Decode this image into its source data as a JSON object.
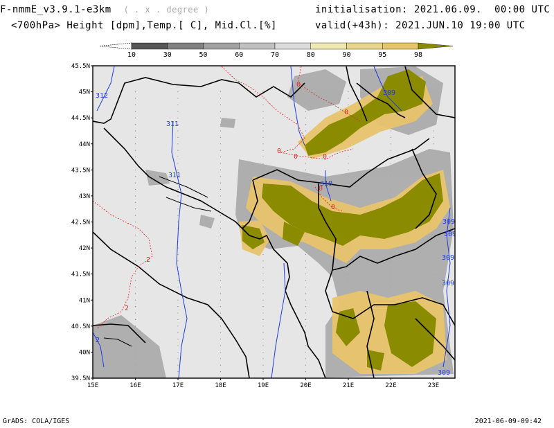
{
  "header": {
    "model": "F-nmmE_v3.9.1-e3km",
    "projection": "( . x . degree )",
    "fields": "<700hPa> Height [dpm],Temp.[ C], Mid.Cl.[%]",
    "init_label": "initialisation:",
    "init_value": "2021.06.09.  00:00 UTC",
    "valid_label": "valid(+43h):",
    "valid_value": "2021.JUN.10 19:00 UTC"
  },
  "colorbar": {
    "ticks": [
      "10",
      "30",
      "50",
      "60",
      "70",
      "80",
      "90",
      "95",
      "98"
    ],
    "colors": [
      "#555555",
      "#808080",
      "#a0a0a0",
      "#c0c0c0",
      "#dcdcdc",
      "#efe9b0",
      "#e9d48e",
      "#e8c46c",
      "#e5b13a",
      "#8b8b00"
    ]
  },
  "map": {
    "lat_labels": [
      "45.5N",
      "45N",
      "44.5N",
      "44N",
      "43.5N",
      "43N",
      "42.5N",
      "42N",
      "41.5N",
      "41N",
      "40.5N",
      "40N",
      "39.5N"
    ],
    "lon_labels": [
      "15E",
      "16E",
      "17E",
      "18E",
      "19E",
      "20E",
      "21E",
      "22E",
      "23E"
    ],
    "height_labels": [
      "312",
      "311",
      "311",
      "310",
      "309",
      "309",
      "309",
      "309",
      "309",
      "309"
    ],
    "temp_labels": [
      "0",
      "0",
      "0",
      "0",
      "0",
      "0",
      "0",
      "2",
      "2",
      "2"
    ],
    "colors": {
      "background": "#e6e6e6",
      "border": "#000000",
      "height_contour": "#1f3ce0",
      "temp_contour": "#e03030",
      "cloud_high": "#8b8b00",
      "cloud_mid": "#e8c46c",
      "cloud_low": "#a0a0a0"
    }
  },
  "footer": {
    "credit": "GrADS: COLA/IGES",
    "timestamp": "2021-06-09-09:42"
  }
}
